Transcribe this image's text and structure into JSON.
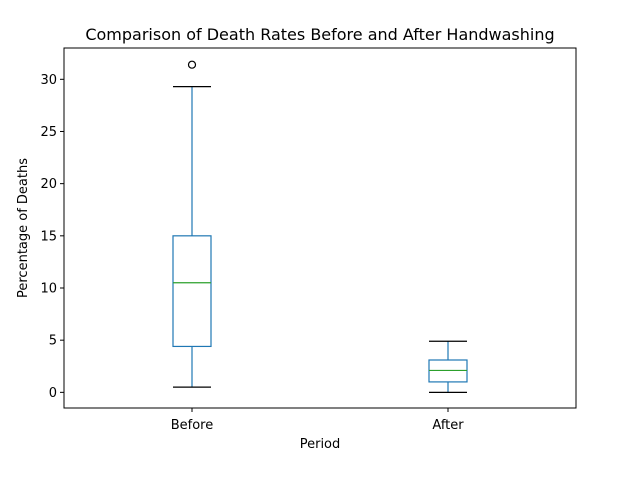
{
  "chart_data": {
    "type": "box",
    "title": "Comparison of Death Rates Before and After Handwashing",
    "xlabel": "Period",
    "ylabel": "Percentage of Deaths",
    "categories": [
      "Before",
      "After"
    ],
    "yticks": [
      0,
      5,
      10,
      15,
      20,
      25,
      30
    ],
    "ylim": [
      -1.5,
      33
    ],
    "boxes": [
      {
        "category": "Before",
        "whisker_low": 0.5,
        "q1": 4.4,
        "median": 10.5,
        "q3": 15.0,
        "whisker_high": 29.3,
        "outliers": [
          31.4
        ]
      },
      {
        "category": "After",
        "whisker_low": 0.0,
        "q1": 1.0,
        "median": 2.1,
        "q3": 3.1,
        "whisker_high": 4.9,
        "outliers": []
      }
    ],
    "grid": false,
    "colors": {
      "box": "#1f77b4",
      "median": "#2ca02c",
      "whisker_cap": "#000000",
      "outlier": "#000000"
    }
  }
}
